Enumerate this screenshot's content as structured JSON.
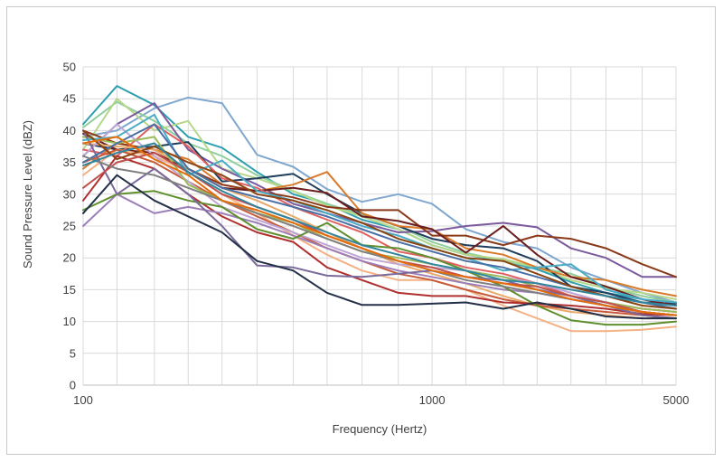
{
  "chart_data": {
    "type": "line",
    "title": "",
    "xlabel": "Frequency (Hertz)",
    "ylabel": "Sound Pressure Level (dBZ)",
    "x_scale": "log",
    "xlim": [
      100,
      5000
    ],
    "ylim": [
      0,
      50
    ],
    "x_tick_labels": [
      "100",
      "1000",
      "5000"
    ],
    "x_tick_values": [
      100,
      1000,
      5000
    ],
    "y_tick_values": [
      0,
      5,
      10,
      15,
      20,
      25,
      30,
      35,
      40,
      45,
      50
    ],
    "x_minor_grid": [
      125,
      160,
      200,
      250,
      315,
      400,
      500,
      630,
      800,
      1250,
      1600,
      2000,
      2500,
      3150,
      4000
    ],
    "grid": true,
    "legend": "none",
    "x": [
      100,
      125,
      160,
      200,
      250,
      315,
      400,
      500,
      630,
      800,
      1000,
      1250,
      1600,
      2000,
      2500,
      3150,
      4000,
      5000
    ],
    "series": [
      {
        "color": "#7fa7cf",
        "values": [
          39,
          40,
          43.5,
          45.2,
          44.3,
          36.2,
          34.3,
          30.8,
          28.8,
          30,
          28.5,
          24.5,
          22.5,
          21.5,
          18.5,
          16.5,
          14.5,
          13
        ]
      },
      {
        "color": "#2e9fb0",
        "values": [
          41,
          47,
          44,
          39,
          37.3,
          33.5,
          30,
          28.5,
          26,
          24.5,
          22,
          20.5,
          19.5,
          18.2,
          16.2,
          14.5,
          13.5,
          12.5
        ]
      },
      {
        "color": "#8fcf9c",
        "values": [
          40.5,
          44.5,
          41.5,
          38,
          36,
          33,
          30.5,
          28.5,
          26.8,
          25,
          22.5,
          20.8,
          19.5,
          18.5,
          17.5,
          15.5,
          14,
          13
        ]
      },
      {
        "color": "#b6d78a",
        "values": [
          37,
          45,
          40,
          41.5,
          34,
          32.5,
          30.5,
          28.2,
          26.5,
          24.5,
          22,
          20.5,
          19.8,
          18.5,
          16.5,
          15.2,
          14.5,
          13.5
        ]
      },
      {
        "color": "#7b5a9e",
        "values": [
          36,
          41,
          44.3,
          37,
          34,
          31.5,
          28.5,
          27,
          25.5,
          24,
          24.2,
          25,
          25.5,
          24.8,
          21.5,
          20,
          17,
          17
        ]
      },
      {
        "color": "#1f3d5c",
        "values": [
          38,
          37,
          37.5,
          38.2,
          32,
          32.5,
          33.2,
          30,
          27,
          25,
          23,
          22,
          21.5,
          19.5,
          15.5,
          14.5,
          13,
          12.8
        ]
      },
      {
        "color": "#d97a2b",
        "values": [
          34,
          38,
          37,
          35.5,
          31.5,
          30.5,
          31.5,
          33.5,
          27,
          25,
          24.5,
          21.5,
          20.5,
          18.5,
          17,
          16.5,
          15,
          14
        ]
      },
      {
        "color": "#8a3a1a",
        "values": [
          40,
          38,
          37,
          34,
          31.5,
          30.5,
          29.5,
          28,
          27.5,
          27.5,
          23.5,
          23.5,
          22,
          23.5,
          23,
          21.5,
          19,
          17
        ]
      },
      {
        "color": "#6b1e1e",
        "values": [
          39.5,
          37,
          36.5,
          34,
          31,
          30.5,
          31,
          30.2,
          26.5,
          25.8,
          24.5,
          20.8,
          25,
          20.5,
          17,
          15.5,
          13.5,
          12.5
        ]
      },
      {
        "color": "#e06060",
        "values": [
          37,
          36,
          41,
          37.5,
          32.5,
          31,
          28,
          26,
          24,
          21,
          20,
          18.5,
          17.5,
          16,
          14,
          13,
          12,
          11.5
        ]
      },
      {
        "color": "#e8a96a",
        "values": [
          38,
          37.5,
          37,
          34,
          31,
          29,
          26.5,
          24,
          21.5,
          19,
          17.5,
          16,
          14,
          12.5,
          11.5,
          11,
          10.5,
          10.5
        ]
      },
      {
        "color": "#f4b183",
        "values": [
          33,
          37,
          36,
          33.5,
          30,
          27,
          23.5,
          20.5,
          18,
          16.5,
          16.5,
          15,
          12.5,
          10.5,
          8.5,
          8.5,
          8.7,
          9.2
        ]
      },
      {
        "color": "#c75a3a",
        "values": [
          35,
          37,
          35,
          32,
          29,
          26.5,
          24,
          21.5,
          19.5,
          17.5,
          16.5,
          15,
          13.5,
          12.5,
          12,
          11.5,
          11,
          10.5
        ]
      },
      {
        "color": "#b03030",
        "values": [
          29,
          36,
          34,
          30,
          26.5,
          24,
          22.5,
          18.5,
          16.5,
          14.5,
          14,
          14,
          13,
          12.8,
          12.5,
          12,
          11.2,
          11
        ]
      },
      {
        "color": "#9d7fb8",
        "values": [
          25,
          30,
          27,
          28,
          27,
          25.5,
          23.5,
          21.5,
          19.5,
          18,
          17,
          16,
          15,
          14.5,
          13.5,
          12.5,
          11.5,
          11
        ]
      },
      {
        "color": "#bfa6d6",
        "values": [
          36,
          41,
          36,
          32,
          28,
          26,
          24,
          22,
          20,
          19,
          18.5,
          18,
          17,
          16,
          14.5,
          13,
          12,
          11.5
        ]
      },
      {
        "color": "#5f8f2f",
        "values": [
          27.5,
          30,
          30.5,
          29,
          28,
          24.5,
          23,
          25.5,
          22,
          21.5,
          20,
          18,
          15.5,
          12.5,
          10.2,
          9.5,
          9.5,
          10
        ]
      },
      {
        "color": "#9bbb59",
        "values": [
          39,
          38,
          39,
          31.5,
          29,
          27,
          25.5,
          23,
          21,
          20,
          19,
          18,
          17,
          15.5,
          14,
          13,
          12,
          11.5
        ]
      },
      {
        "color": "#7b6a9c",
        "values": [
          40,
          30,
          34,
          30,
          25,
          18.8,
          18.5,
          17.2,
          17,
          17.5,
          18,
          17,
          16.5,
          15,
          14,
          12.5,
          11,
          10.5
        ]
      },
      {
        "color": "#233047",
        "values": [
          27,
          33,
          29,
          26.5,
          24,
          19.5,
          18,
          14.5,
          12.6,
          12.6,
          12.8,
          13,
          12,
          13,
          12,
          10.8,
          10.5,
          10.5
        ]
      },
      {
        "color": "#4bacc6",
        "values": [
          38.5,
          39,
          42.5,
          33,
          35.3,
          30.5,
          29,
          27,
          25,
          23.5,
          21.5,
          20,
          18,
          18.5,
          19,
          15,
          13.5,
          13
        ]
      },
      {
        "color": "#4a6fa5",
        "values": [
          35,
          38,
          41,
          34,
          31,
          29.5,
          28,
          26.5,
          24.5,
          22.5,
          21,
          19.5,
          18.5,
          17,
          15.5,
          14,
          13,
          12
        ]
      },
      {
        "color": "#8b4513",
        "values": [
          40,
          35.5,
          37.5,
          35,
          33,
          30,
          29,
          27.5,
          25.5,
          23,
          21.5,
          20,
          19.5,
          17.5,
          15.5,
          14,
          12.5,
          12
        ]
      },
      {
        "color": "#c0504d",
        "values": [
          31,
          35,
          36.5,
          33.5,
          30,
          28,
          26,
          23.5,
          21.5,
          19.5,
          18.5,
          17,
          16,
          15.5,
          14,
          13,
          11.5,
          11
        ]
      },
      {
        "color": "#7f7f7f",
        "values": [
          36,
          34,
          33,
          31,
          29,
          27,
          25,
          23,
          21,
          19.5,
          18,
          16.5,
          15.5,
          14.5,
          13.5,
          12.5,
          11.5,
          11
        ]
      },
      {
        "color": "#31859c",
        "values": [
          34.5,
          36.5,
          38,
          33.5,
          30.5,
          28,
          26,
          24,
          22,
          20.5,
          19,
          18,
          16.5,
          16,
          15,
          14,
          13,
          12.5
        ]
      },
      {
        "color": "#e46c0a",
        "values": [
          38,
          39,
          35.5,
          33,
          29,
          27.5,
          25.5,
          23.5,
          21.5,
          19.5,
          18,
          17,
          16,
          15,
          13.5,
          12.5,
          11.5,
          11
        ]
      }
    ]
  }
}
